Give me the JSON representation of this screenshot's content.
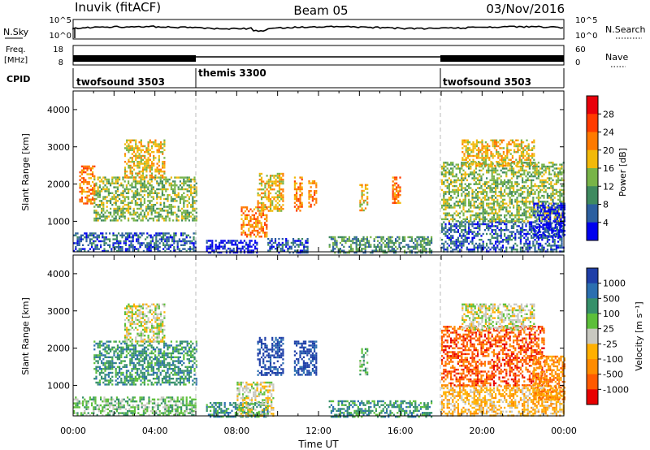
{
  "header": {
    "station": "Inuvik (fitACF)",
    "beam": "Beam 05",
    "date": "03/Nov/2016"
  },
  "top_panels": {
    "nsky_label": "N.Sky",
    "nsky_ticks": [
      "10^5",
      "10^0"
    ],
    "nsearch_label": "N.Search",
    "nsearch_ticks": [
      "10^5",
      "10^0"
    ],
    "freq_label": "Freq.",
    "freq_unit": "[MHz]",
    "freq_ticks": [
      "18",
      "8"
    ],
    "nave_label": "Nave",
    "nave_ticks": [
      "60",
      "0"
    ],
    "cpid_label": "CPID",
    "cpid_segments": [
      {
        "name": "twofsound 3503",
        "start": 0,
        "end": 6
      },
      {
        "name": "themis 3300",
        "start": 6,
        "end": 18
      },
      {
        "name": "twofsound 3503",
        "start": 18,
        "end": 24
      }
    ]
  },
  "colorbars": {
    "power": {
      "label": "Power [dB]",
      "ticks": [
        "28",
        "24",
        "20",
        "16",
        "12",
        "8",
        "4"
      ],
      "colors": [
        "#e8000b",
        "#ff3b00",
        "#ff7a00",
        "#f2b90a",
        "#78b448",
        "#3f8a5f",
        "#2c5fa0",
        "#0000ee"
      ]
    },
    "velocity": {
      "label": "Velocity [m s⁻¹]",
      "ticks": [
        "1000",
        "500",
        "100",
        "25",
        "-25",
        "-100",
        "-500",
        "-1000"
      ],
      "colors": [
        "#1f3fa8",
        "#2b6fb0",
        "#36906a",
        "#5cbf3a",
        "#c8c8c0",
        "#ffb000",
        "#ff8c00",
        "#ff5a00",
        "#e80000"
      ]
    }
  },
  "chart_data": [
    {
      "type": "heatmap",
      "title": "Power",
      "ylabel": "Slant Range [km]",
      "xlabel": "Time UT",
      "x_ticks": [
        "00:00",
        "04:00",
        "08:00",
        "12:00",
        "16:00",
        "20:00",
        "00:00"
      ],
      "y_ticks": [
        "1000",
        "2000",
        "3000",
        "4000"
      ],
      "xlim": [
        0,
        24
      ],
      "ylim": [
        180,
        4500
      ],
      "regions": [
        {
          "t0": 0.0,
          "t1": 6.0,
          "r0": 180,
          "r1": 700,
          "level": 6
        },
        {
          "t0": 1.0,
          "t1": 6.0,
          "r0": 1000,
          "r1": 2200,
          "level": 4
        },
        {
          "t0": 0.3,
          "t1": 1.0,
          "r0": 1500,
          "r1": 2500,
          "level": 2
        },
        {
          "t0": 2.5,
          "t1": 4.5,
          "r0": 2200,
          "r1": 3200,
          "level": 3
        },
        {
          "t0": 6.5,
          "t1": 9.0,
          "r0": 180,
          "r1": 500,
          "level": 7
        },
        {
          "t0": 8.2,
          "t1": 9.5,
          "r0": 600,
          "r1": 1400,
          "level": 2
        },
        {
          "t0": 9.5,
          "t1": 11.5,
          "r0": 180,
          "r1": 550,
          "level": 6
        },
        {
          "t0": 9.0,
          "t1": 10.3,
          "r0": 1300,
          "r1": 2300,
          "level": 3
        },
        {
          "t0": 10.8,
          "t1": 11.2,
          "r0": 1300,
          "r1": 2200,
          "level": 2
        },
        {
          "t0": 11.5,
          "t1": 11.9,
          "r0": 1400,
          "r1": 2100,
          "level": 2
        },
        {
          "t0": 12.5,
          "t1": 17.5,
          "r0": 180,
          "r1": 600,
          "level": 5
        },
        {
          "t0": 14.0,
          "t1": 14.4,
          "r0": 1300,
          "r1": 2000,
          "level": 3
        },
        {
          "t0": 15.6,
          "t1": 16.0,
          "r0": 1500,
          "r1": 2200,
          "level": 2
        },
        {
          "t0": 18.0,
          "t1": 24.0,
          "r0": 180,
          "r1": 1000,
          "level": 6
        },
        {
          "t0": 18.0,
          "t1": 24.0,
          "r0": 1000,
          "r1": 2600,
          "level": 4
        },
        {
          "t0": 19.0,
          "t1": 22.5,
          "r0": 2500,
          "r1": 3200,
          "level": 3
        },
        {
          "t0": 22.5,
          "t1": 24.0,
          "r0": 600,
          "r1": 1500,
          "level": 7
        }
      ]
    },
    {
      "type": "heatmap",
      "title": "Velocity",
      "ylabel": "Slant Range [km]",
      "xlabel": "Time UT",
      "x_ticks": [
        "00:00",
        "04:00",
        "08:00",
        "12:00",
        "16:00",
        "20:00",
        "00:00"
      ],
      "y_ticks": [
        "1000",
        "2000",
        "3000",
        "4000"
      ],
      "xlim": [
        0,
        24
      ],
      "ylim": [
        180,
        4500
      ],
      "regions": [
        {
          "t0": 0.0,
          "t1": 6.0,
          "r0": 180,
          "r1": 700,
          "level": 3
        },
        {
          "t0": 1.0,
          "t1": 6.0,
          "r0": 1000,
          "r1": 2200,
          "level": 2
        },
        {
          "t0": 2.5,
          "t1": 4.5,
          "r0": 2200,
          "r1": 3200,
          "level": 4
        },
        {
          "t0": 6.5,
          "t1": 9.5,
          "r0": 180,
          "r1": 550,
          "level": 2
        },
        {
          "t0": 8.0,
          "t1": 9.8,
          "r0": 200,
          "r1": 1100,
          "level": 4
        },
        {
          "t0": 9.0,
          "t1": 10.3,
          "r0": 1300,
          "r1": 2300,
          "level": 0
        },
        {
          "t0": 10.8,
          "t1": 11.9,
          "r0": 1300,
          "r1": 2200,
          "level": 0
        },
        {
          "t0": 12.5,
          "t1": 17.5,
          "r0": 180,
          "r1": 600,
          "level": 2
        },
        {
          "t0": 14.0,
          "t1": 14.4,
          "r0": 1300,
          "r1": 2000,
          "level": 3
        },
        {
          "t0": 18.0,
          "t1": 24.0,
          "r0": 180,
          "r1": 1000,
          "level": 5
        },
        {
          "t0": 18.0,
          "t1": 23.0,
          "r0": 1000,
          "r1": 2600,
          "level": 7
        },
        {
          "t0": 19.0,
          "t1": 22.5,
          "r0": 2500,
          "r1": 3200,
          "level": 4
        },
        {
          "t0": 22.5,
          "t1": 24.0,
          "r0": 600,
          "r1": 1800,
          "level": 6
        }
      ]
    }
  ],
  "axes": {
    "time_label": "Time UT",
    "range_label": "Slant Range [km]"
  }
}
